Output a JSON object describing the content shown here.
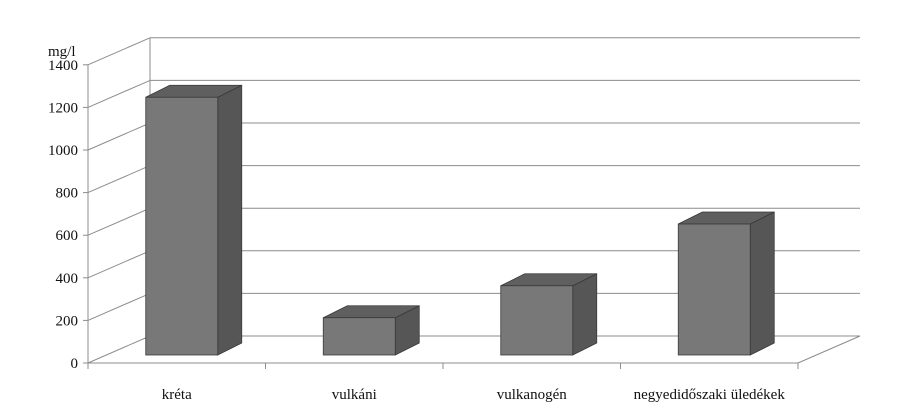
{
  "chart_data": {
    "type": "bar",
    "style": "3d-column",
    "categories": [
      "kréta",
      "vulkáni",
      "vulkanogén",
      "negyedidőszaki üledékek"
    ],
    "values": [
      1210,
      175,
      325,
      615
    ],
    "ylabel": "mg/l",
    "ylim": [
      0,
      1400
    ],
    "yticks": [
      0,
      200,
      400,
      600,
      800,
      1000,
      1200,
      1400
    ],
    "grid": true,
    "legend": "none",
    "colors": {
      "bar_front": "#787878",
      "bar_side": "#565656",
      "bar_top": "#5f5f5f",
      "bar_edge": "#3a3a3a",
      "grid": "#8c8c8c",
      "axis": "#8c8c8c"
    }
  }
}
